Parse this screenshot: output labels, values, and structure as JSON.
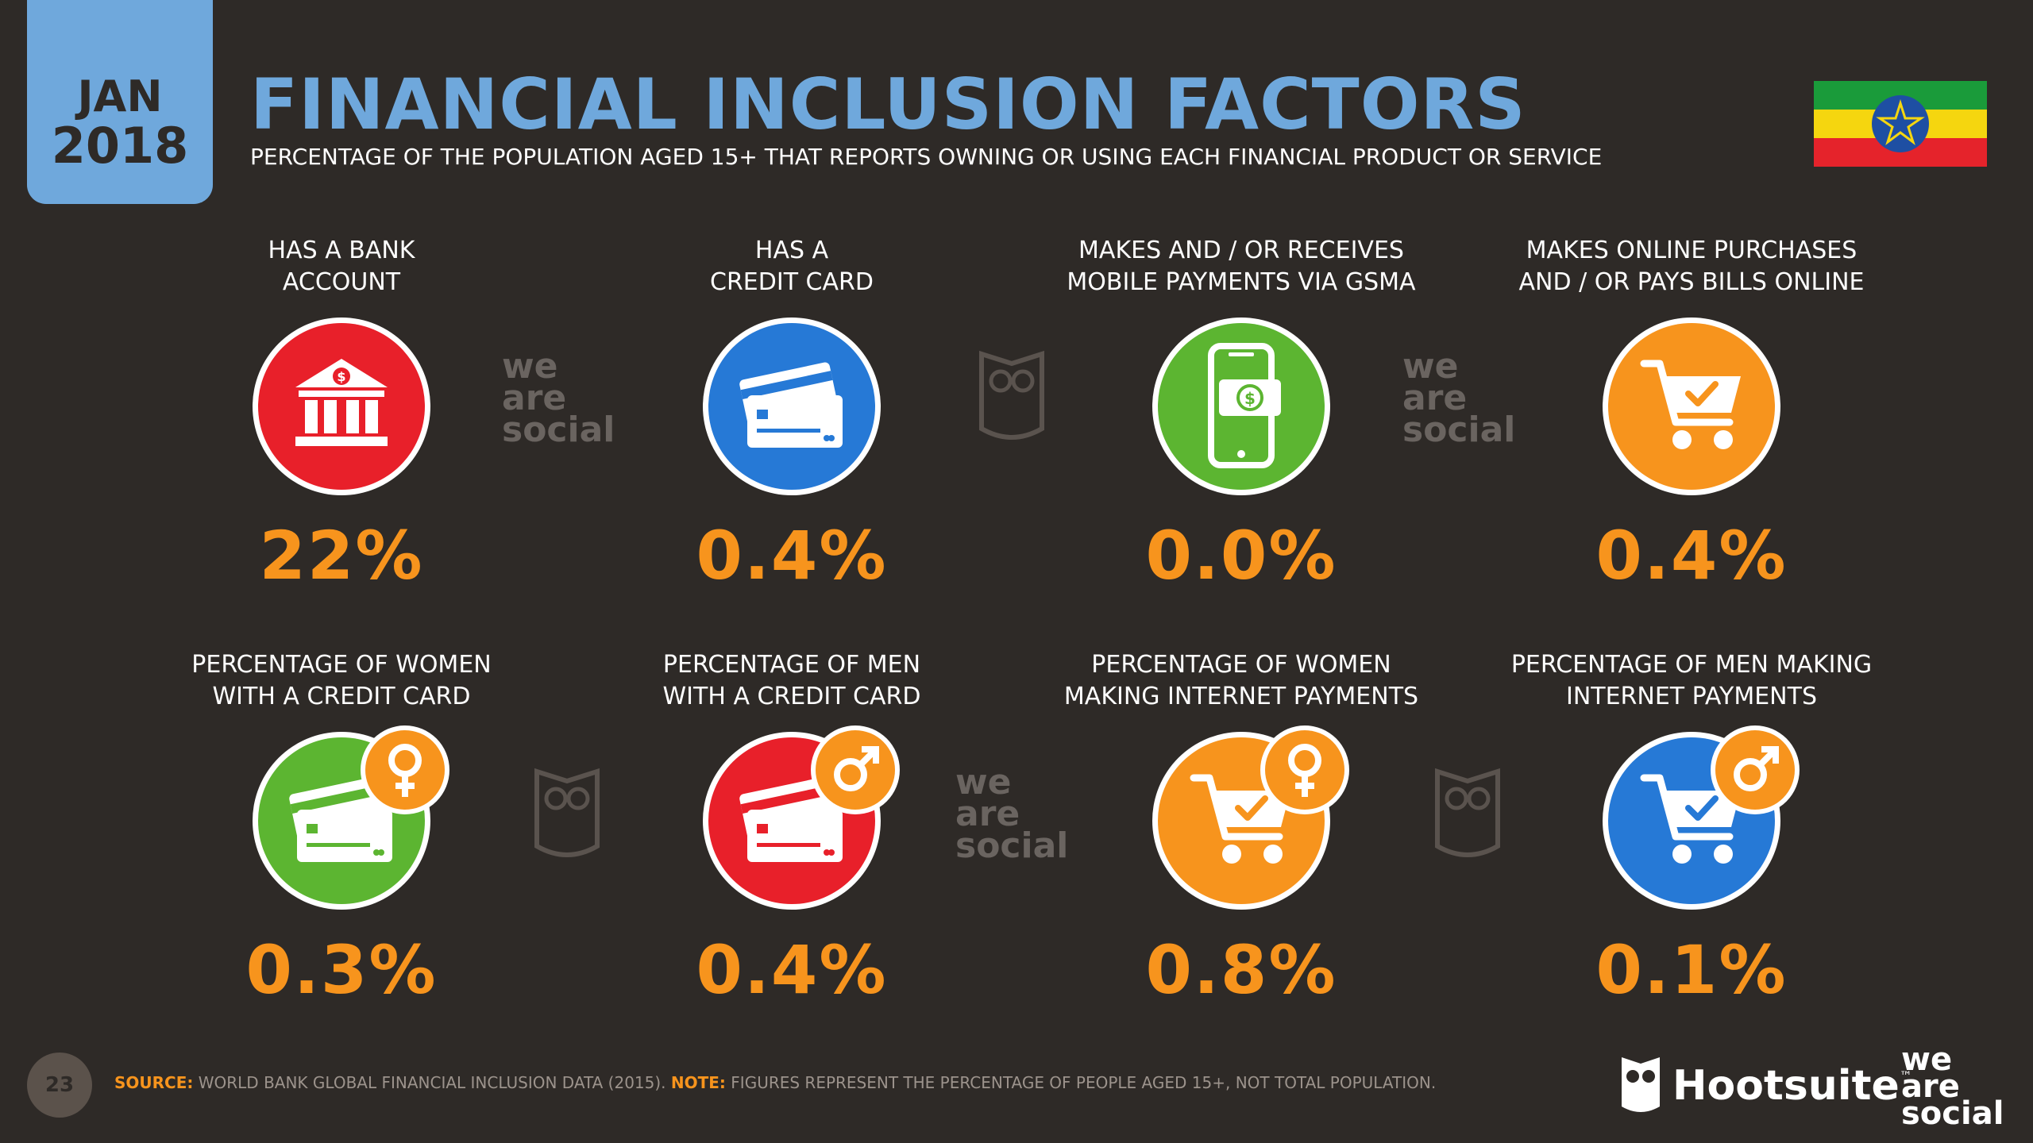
{
  "header": {
    "month": "JAN",
    "year": "2018",
    "title": "FINANCIAL INCLUSION FACTORS",
    "subtitle": "PERCENTAGE OF THE POPULATION AGED 15+ THAT REPORTS OWNING OR USING EACH FINANCIAL PRODUCT OR SERVICE"
  },
  "colors": {
    "background": "#2e2a27",
    "title": "#6fa8dc",
    "value": "#f7941d",
    "red": "#e8202a",
    "blue": "#2679d6",
    "green": "#5cb531",
    "orange": "#f7941d"
  },
  "stats": [
    {
      "label_line1": "HAS A BANK",
      "label_line2": "ACCOUNT",
      "value": "22%",
      "icon": "bank-icon",
      "color": "red"
    },
    {
      "label_line1": "HAS A",
      "label_line2": "CREDIT CARD",
      "value": "0.4%",
      "icon": "credit-card-icon",
      "color": "blue"
    },
    {
      "label_line1": "MAKES AND / OR RECEIVES",
      "label_line2": "MOBILE PAYMENTS VIA GSMA",
      "value": "0.0%",
      "icon": "mobile-payment-icon",
      "color": "green"
    },
    {
      "label_line1": "MAKES ONLINE PURCHASES",
      "label_line2": "AND / OR PAYS BILLS ONLINE",
      "value": "0.4%",
      "icon": "shopping-cart-icon",
      "color": "orange"
    },
    {
      "label_line1": "PERCENTAGE OF WOMEN",
      "label_line2": "WITH A CREDIT CARD",
      "value": "0.3%",
      "icon": "credit-card-female-icon",
      "color": "green"
    },
    {
      "label_line1": "PERCENTAGE OF MEN",
      "label_line2": "WITH A CREDIT CARD",
      "value": "0.4%",
      "icon": "credit-card-male-icon",
      "color": "red"
    },
    {
      "label_line1": "PERCENTAGE OF WOMEN",
      "label_line2": "MAKING INTERNET PAYMENTS",
      "value": "0.8%",
      "icon": "cart-female-icon",
      "color": "orange"
    },
    {
      "label_line1": "PERCENTAGE OF MEN MAKING",
      "label_line2": "INTERNET PAYMENTS",
      "value": "0.1%",
      "icon": "cart-male-icon",
      "color": "blue"
    }
  ],
  "watermark": {
    "line1": "we",
    "line2": "are",
    "line3": "social"
  },
  "footer": {
    "page_number": "23",
    "source_key": "SOURCE:",
    "source_text": " WORLD BANK GLOBAL FINANCIAL INCLUSION DATA (2015). ",
    "note_key": "NOTE:",
    "note_text": " FIGURES REPRESENT THE PERCENTAGE OF PEOPLE AGED 15+, NOT TOTAL POPULATION.",
    "hootsuite": "Hootsuite",
    "tm": "™",
    "was_line1": "we",
    "was_line2": "are",
    "was_line3": "social"
  }
}
